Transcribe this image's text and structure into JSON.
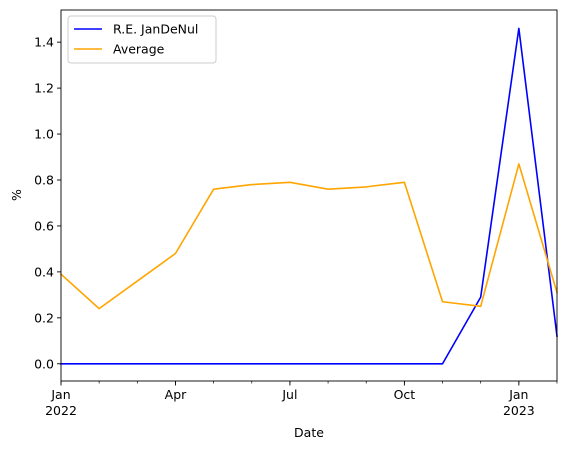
{
  "chart_data": {
    "type": "line",
    "title": "",
    "xlabel": "Date",
    "ylabel": "%",
    "x": [
      "2022-01",
      "2022-02",
      "2022-03",
      "2022-04",
      "2022-05",
      "2022-06",
      "2022-07",
      "2022-08",
      "2022-09",
      "2022-10",
      "2022-11",
      "2022-12",
      "2023-01",
      "2023-02"
    ],
    "series": [
      {
        "name": "R.E. JanDeNul",
        "color": "#0000ff",
        "values": [
          0.0,
          0.0,
          0.0,
          0.0,
          0.0,
          0.0,
          0.0,
          0.0,
          0.0,
          0.0,
          0.0,
          0.29,
          1.46,
          0.12
        ]
      },
      {
        "name": "Average",
        "color": "#ffa500",
        "values": [
          0.39,
          0.24,
          0.36,
          0.48,
          0.76,
          0.78,
          0.79,
          0.76,
          0.77,
          0.79,
          0.27,
          0.25,
          0.87,
          0.31
        ]
      }
    ],
    "ylim": [
      -0.075,
      1.54
    ],
    "yticks": [
      "0.0",
      "0.2",
      "0.4",
      "0.6",
      "0.8",
      "1.0",
      "1.2",
      "1.4"
    ],
    "xticks_major": [
      {
        "month": "2022-01",
        "label": "Jan",
        "sublabel": "2022"
      },
      {
        "month": "2022-04",
        "label": "Apr",
        "sublabel": ""
      },
      {
        "month": "2022-07",
        "label": "Jul",
        "sublabel": ""
      },
      {
        "month": "2022-10",
        "label": "Oct",
        "sublabel": ""
      },
      {
        "month": "2023-01",
        "label": "Jan",
        "sublabel": "2023"
      }
    ],
    "legend": "top-left",
    "grid": false
  }
}
